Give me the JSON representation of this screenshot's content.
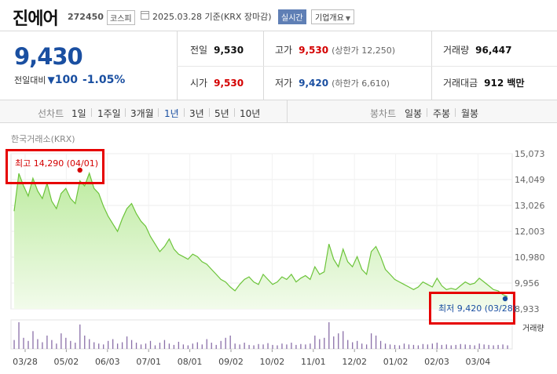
{
  "header": {
    "name": "진에어",
    "code": "272450",
    "market": "코스피",
    "date_text": "2025.03.28  기준(KRX 장마감)",
    "realtime": "실시간",
    "company_info": "기업개요"
  },
  "price": {
    "current": "9,430",
    "change_label": "전일대비",
    "change_amount": "100",
    "change_percent": "-1.05%"
  },
  "stats": {
    "prev_label": "전일",
    "prev_value": "9,530",
    "open_label": "시가",
    "open_value": "9,530",
    "high_label": "고가",
    "high_value": "9,530",
    "upper_limit": "(상한가 12,250)",
    "low_label": "저가",
    "low_value": "9,420",
    "lower_limit": "(하한가 6,610)",
    "volume_label": "거래량",
    "volume_value": "96,447",
    "amount_label": "거래대금",
    "amount_value": "912 백만"
  },
  "periods": {
    "line_label": "선차트",
    "line_items": [
      "1일",
      "1주일",
      "3개월",
      "1년",
      "3년",
      "5년",
      "10년"
    ],
    "active": "1년",
    "candle_label": "봉차트",
    "candle_items": [
      "일봉",
      "주봉",
      "월봉"
    ]
  },
  "exchange": "한국거래소(KRX)",
  "annotations": {
    "high": "최고 14,290 (04/01)",
    "low": "최저 9,420 (03/28)",
    "volume": "거래량"
  },
  "colors": {
    "up": "#d40000",
    "down": "#1a4fa1",
    "area_line": "#6cc43a",
    "highlight_box": "#e60000"
  },
  "chart_data": {
    "type": "area",
    "title": "",
    "y_ticks": [
      "15,073",
      "14,049",
      "13,026",
      "12,003",
      "10,980",
      "9,956",
      "8,933"
    ],
    "ylim": [
      8933,
      15073
    ],
    "x_ticks": [
      "03/28",
      "05/02",
      "06/03",
      "07/01",
      "08/01",
      "09/02",
      "10/02",
      "11/01",
      "12/02",
      "01/02",
      "02/03",
      "03/04"
    ],
    "series": [
      {
        "values": [
          12800,
          14290,
          13800,
          13400,
          14100,
          13600,
          13300,
          13900,
          13200,
          12900,
          13500,
          13700,
          13300,
          13100,
          14000,
          13800,
          14300,
          13700,
          13500,
          13000,
          12600,
          12300,
          12000,
          12500,
          12900,
          13100,
          12700,
          12400,
          12200,
          11800,
          11500,
          11200,
          11400,
          11700,
          11300,
          11100,
          11000,
          10900,
          11100,
          11000,
          10800,
          10700,
          10500,
          10300,
          10100,
          10000,
          9800,
          9650,
          9900,
          10100,
          10200,
          10000,
          9900,
          10300,
          10100,
          9900,
          10000,
          10200,
          10100,
          10300,
          10000,
          10150,
          10250,
          10100,
          10600,
          10300,
          10400,
          11500,
          10900,
          10600,
          11300,
          10800,
          10600,
          11000,
          10500,
          10300,
          11200,
          11400,
          11000,
          10500,
          10300,
          10100,
          10000,
          9900,
          9800,
          9700,
          9800,
          10000,
          9900,
          9800,
          10150,
          9850,
          9700,
          9750,
          9700,
          9850,
          10000,
          9900,
          9950,
          10150,
          10000,
          9850,
          9700,
          9650,
          9500,
          9430
        ],
        "volume": [
          20,
          60,
          25,
          18,
          40,
          22,
          15,
          30,
          20,
          12,
          35,
          25,
          18,
          14,
          55,
          30,
          22,
          15,
          12,
          10,
          18,
          22,
          12,
          15,
          28,
          20,
          14,
          10,
          12,
          18,
          8,
          14,
          20,
          12,
          9,
          16,
          10,
          8,
          12,
          15,
          10,
          22,
          14,
          9,
          18,
          25,
          30,
          12,
          10,
          14,
          9,
          8,
          11,
          10,
          13,
          9,
          8,
          12,
          10,
          14,
          9,
          11,
          10,
          12,
          30,
          22,
          25,
          60,
          28,
          35,
          40,
          20,
          15,
          18,
          12,
          10,
          35,
          30,
          18,
          12,
          10,
          9,
          8,
          12,
          10,
          9,
          8,
          11,
          10,
          12,
          14,
          9,
          10,
          8,
          9,
          11,
          10,
          9,
          8,
          12,
          10,
          9,
          8,
          9,
          10,
          8
        ]
      }
    ],
    "high": {
      "value": 14290,
      "date": "04/01"
    },
    "low": {
      "value": 9420,
      "date": "03/28"
    }
  }
}
